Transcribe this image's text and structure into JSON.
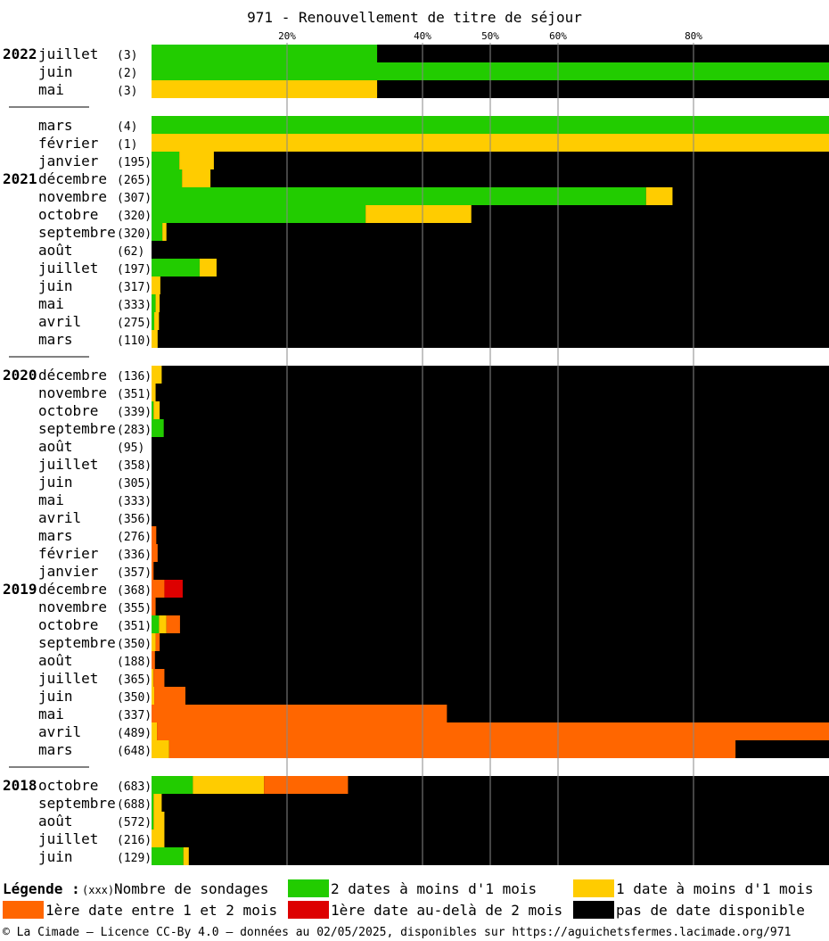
{
  "title": "971 - Renouvellement de titre de séjour",
  "colors": {
    "green": "#22cc00",
    "yellow": "#ffcc00",
    "orange": "#ff6600",
    "red": "#dd0000",
    "none": "#000000"
  },
  "legend": {
    "heading": "Légende :",
    "count_marker": "(xxx)",
    "count_label": "Nombre de sondages",
    "items": [
      {
        "key": "green",
        "label": "2 dates à moins d'1 mois"
      },
      {
        "key": "yellow",
        "label": "1 date à moins d'1 mois"
      },
      {
        "key": "orange",
        "label": "1ère date entre 1 et 2 mois"
      },
      {
        "key": "red",
        "label": "1ère date au-delà de 2 mois"
      },
      {
        "key": "none",
        "label": "pas de date disponible"
      }
    ]
  },
  "footer": "© La Cimade — Licence CC-By 4.0 — données au 02/05/2025, disponibles sur https://aguichetsfermes.lacimade.org/971",
  "chart_data": {
    "type": "bar",
    "orientation": "horizontal",
    "stacked": true,
    "xlim": [
      0,
      100
    ],
    "x_unit": "%",
    "gridlines": [
      20,
      40,
      50,
      60,
      80
    ],
    "tick_labels": [
      "20%",
      "40%",
      "50%",
      "60%",
      "80%"
    ],
    "series": [
      {
        "key": "green",
        "name": "2 dates à moins d'1 mois"
      },
      {
        "key": "yellow",
        "name": "1 date à moins d'1 mois"
      },
      {
        "key": "orange",
        "name": "1ère date entre 1 et 2 mois"
      },
      {
        "key": "red",
        "name": "1ère date au-delà de 2 mois"
      },
      {
        "key": "none",
        "name": "pas de date disponible"
      }
    ],
    "groups": [
      {
        "rows": [
          {
            "year": "2022",
            "month": "juillet",
            "count": "(3)",
            "values": [
              33.3,
              0,
              0,
              0
            ]
          },
          {
            "year": "",
            "month": "juin",
            "count": "(2)",
            "values": [
              100,
              0,
              0,
              0
            ]
          },
          {
            "year": "",
            "month": "mai",
            "count": "(3)",
            "values": [
              0,
              33.3,
              0,
              0
            ]
          }
        ]
      },
      {
        "rows": [
          {
            "year": "",
            "month": "mars",
            "count": "(4)",
            "values": [
              100,
              0,
              0,
              0
            ]
          },
          {
            "year": "",
            "month": "février",
            "count": "(1)",
            "values": [
              0,
              100,
              0,
              0
            ]
          },
          {
            "year": "",
            "month": "janvier",
            "count": "(195)",
            "values": [
              4.1,
              5.1,
              0,
              0
            ]
          },
          {
            "year": "2021",
            "month": "décembre",
            "count": "(265)",
            "values": [
              4.5,
              4.2,
              0,
              0
            ]
          },
          {
            "year": "",
            "month": "novembre",
            "count": "(307)",
            "values": [
              73.0,
              3.9,
              0,
              0
            ]
          },
          {
            "year": "",
            "month": "octobre",
            "count": "(320)",
            "values": [
              31.6,
              15.6,
              0,
              0
            ]
          },
          {
            "year": "",
            "month": "septembre",
            "count": "(320)",
            "values": [
              1.6,
              0.6,
              0,
              0
            ]
          },
          {
            "year": "",
            "month": "août",
            "count": "(62)",
            "values": [
              0,
              0,
              0,
              0
            ]
          },
          {
            "year": "",
            "month": "juillet",
            "count": "(197)",
            "values": [
              7.1,
              2.5,
              0,
              0
            ]
          },
          {
            "year": "",
            "month": "juin",
            "count": "(317)",
            "values": [
              0,
              1.3,
              0,
              0
            ]
          },
          {
            "year": "",
            "month": "mai",
            "count": "(333)",
            "values": [
              0.6,
              0.6,
              0,
              0
            ]
          },
          {
            "year": "",
            "month": "avril",
            "count": "(275)",
            "values": [
              0.4,
              0.7,
              0,
              0
            ]
          },
          {
            "year": "",
            "month": "mars",
            "count": "(110)",
            "values": [
              0,
              0.9,
              0,
              0
            ]
          }
        ]
      },
      {
        "rows": [
          {
            "year": "2020",
            "month": "décembre",
            "count": "(136)",
            "values": [
              0,
              1.5,
              0,
              0
            ]
          },
          {
            "year": "",
            "month": "novembre",
            "count": "(351)",
            "values": [
              0,
              0.6,
              0,
              0
            ]
          },
          {
            "year": "",
            "month": "octobre",
            "count": "(339)",
            "values": [
              0.3,
              0.9,
              0,
              0
            ]
          },
          {
            "year": "",
            "month": "septembre",
            "count": "(283)",
            "values": [
              1.8,
              0,
              0,
              0
            ]
          },
          {
            "year": "",
            "month": "août",
            "count": "(95)",
            "values": [
              0,
              0,
              0,
              0
            ]
          },
          {
            "year": "",
            "month": "juillet",
            "count": "(358)",
            "values": [
              0,
              0,
              0,
              0
            ]
          },
          {
            "year": "",
            "month": "juin",
            "count": "(305)",
            "values": [
              0,
              0,
              0,
              0
            ]
          },
          {
            "year": "",
            "month": "mai",
            "count": "(333)",
            "values": [
              0,
              0,
              0,
              0
            ]
          },
          {
            "year": "",
            "month": "avril",
            "count": "(356)",
            "values": [
              0,
              0,
              0,
              0
            ]
          },
          {
            "year": "",
            "month": "mars",
            "count": "(276)",
            "values": [
              0,
              0,
              0.7,
              0
            ]
          },
          {
            "year": "",
            "month": "février",
            "count": "(336)",
            "values": [
              0,
              0,
              0.9,
              0
            ]
          },
          {
            "year": "",
            "month": "janvier",
            "count": "(357)",
            "values": [
              0,
              0,
              0.3,
              0
            ]
          },
          {
            "year": "2019",
            "month": "décembre",
            "count": "(368)",
            "values": [
              0,
              0,
              1.9,
              2.7
            ]
          },
          {
            "year": "",
            "month": "novembre",
            "count": "(355)",
            "values": [
              0,
              0,
              0.6,
              0
            ]
          },
          {
            "year": "",
            "month": "octobre",
            "count": "(351)",
            "values": [
              1.1,
              1.1,
              2.0,
              0
            ]
          },
          {
            "year": "",
            "month": "septembre",
            "count": "(350)",
            "values": [
              0,
              0.6,
              0.6,
              0
            ]
          },
          {
            "year": "",
            "month": "août",
            "count": "(188)",
            "values": [
              0,
              0,
              0.5,
              0
            ]
          },
          {
            "year": "",
            "month": "juillet",
            "count": "(365)",
            "values": [
              0,
              0.3,
              1.6,
              0
            ]
          },
          {
            "year": "",
            "month": "juin",
            "count": "(350)",
            "values": [
              0,
              0.4,
              4.6,
              0
            ]
          },
          {
            "year": "",
            "month": "mai",
            "count": "(337)",
            "values": [
              0,
              0,
              43.6,
              0
            ]
          },
          {
            "year": "",
            "month": "avril",
            "count": "(489)",
            "values": [
              0,
              0.8,
              99.2,
              0
            ]
          },
          {
            "year": "",
            "month": "mars",
            "count": "(648)",
            "values": [
              0,
              2.6,
              83.6,
              0
            ]
          }
        ]
      },
      {
        "rows": [
          {
            "year": "2018",
            "month": "octobre",
            "count": "(683)",
            "values": [
              6.1,
              10.5,
              12.4,
              0
            ]
          },
          {
            "year": "",
            "month": "septembre",
            "count": "(688)",
            "values": [
              0.3,
              1.2,
              0,
              0
            ]
          },
          {
            "year": "",
            "month": "août",
            "count": "(572)",
            "values": [
              0.3,
              1.6,
              0,
              0
            ]
          },
          {
            "year": "",
            "month": "juillet",
            "count": "(216)",
            "values": [
              0,
              1.9,
              0,
              0
            ]
          },
          {
            "year": "",
            "month": "juin",
            "count": "(129)",
            "values": [
              4.7,
              0.8,
              0,
              0
            ]
          }
        ]
      }
    ]
  }
}
